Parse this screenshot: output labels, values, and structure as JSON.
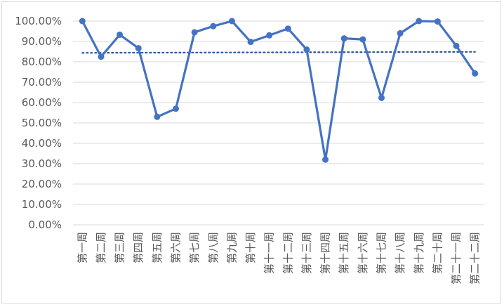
{
  "chart_data": {
    "type": "line",
    "title": "",
    "xlabel": "",
    "ylabel": "",
    "categories": [
      "第一周",
      "第二周",
      "第三周",
      "第四周",
      "第五周",
      "第六周",
      "第七周",
      "第八周",
      "第九周",
      "第十周",
      "第十一周",
      "第十二周",
      "第十三周",
      "第十四周",
      "第十五周",
      "第十六周",
      "第十七周",
      "第十八周",
      "第十九周",
      "第二十周",
      "第二十一周",
      "第二十二周"
    ],
    "series": [
      {
        "values": [
          100.0,
          82.5,
          93.3,
          86.7,
          53.0,
          57.0,
          94.5,
          97.5,
          100.0,
          89.8,
          93.0,
          96.3,
          86.0,
          32.0,
          91.5,
          91.0,
          62.3,
          94.0,
          100.0,
          99.8,
          87.8,
          74.3
        ],
        "color": "#4472c4"
      }
    ],
    "trendline": {
      "type": "linear",
      "style": "dotted",
      "color": "#2e5597"
    },
    "ylim": [
      0,
      100
    ],
    "y_ticks": [
      "0.00%",
      "10.00%",
      "20.00%",
      "30.00%",
      "40.00%",
      "50.00%",
      "60.00%",
      "70.00%",
      "80.00%",
      "90.00%",
      "100.00%"
    ],
    "grid": true,
    "legend": "none"
  }
}
